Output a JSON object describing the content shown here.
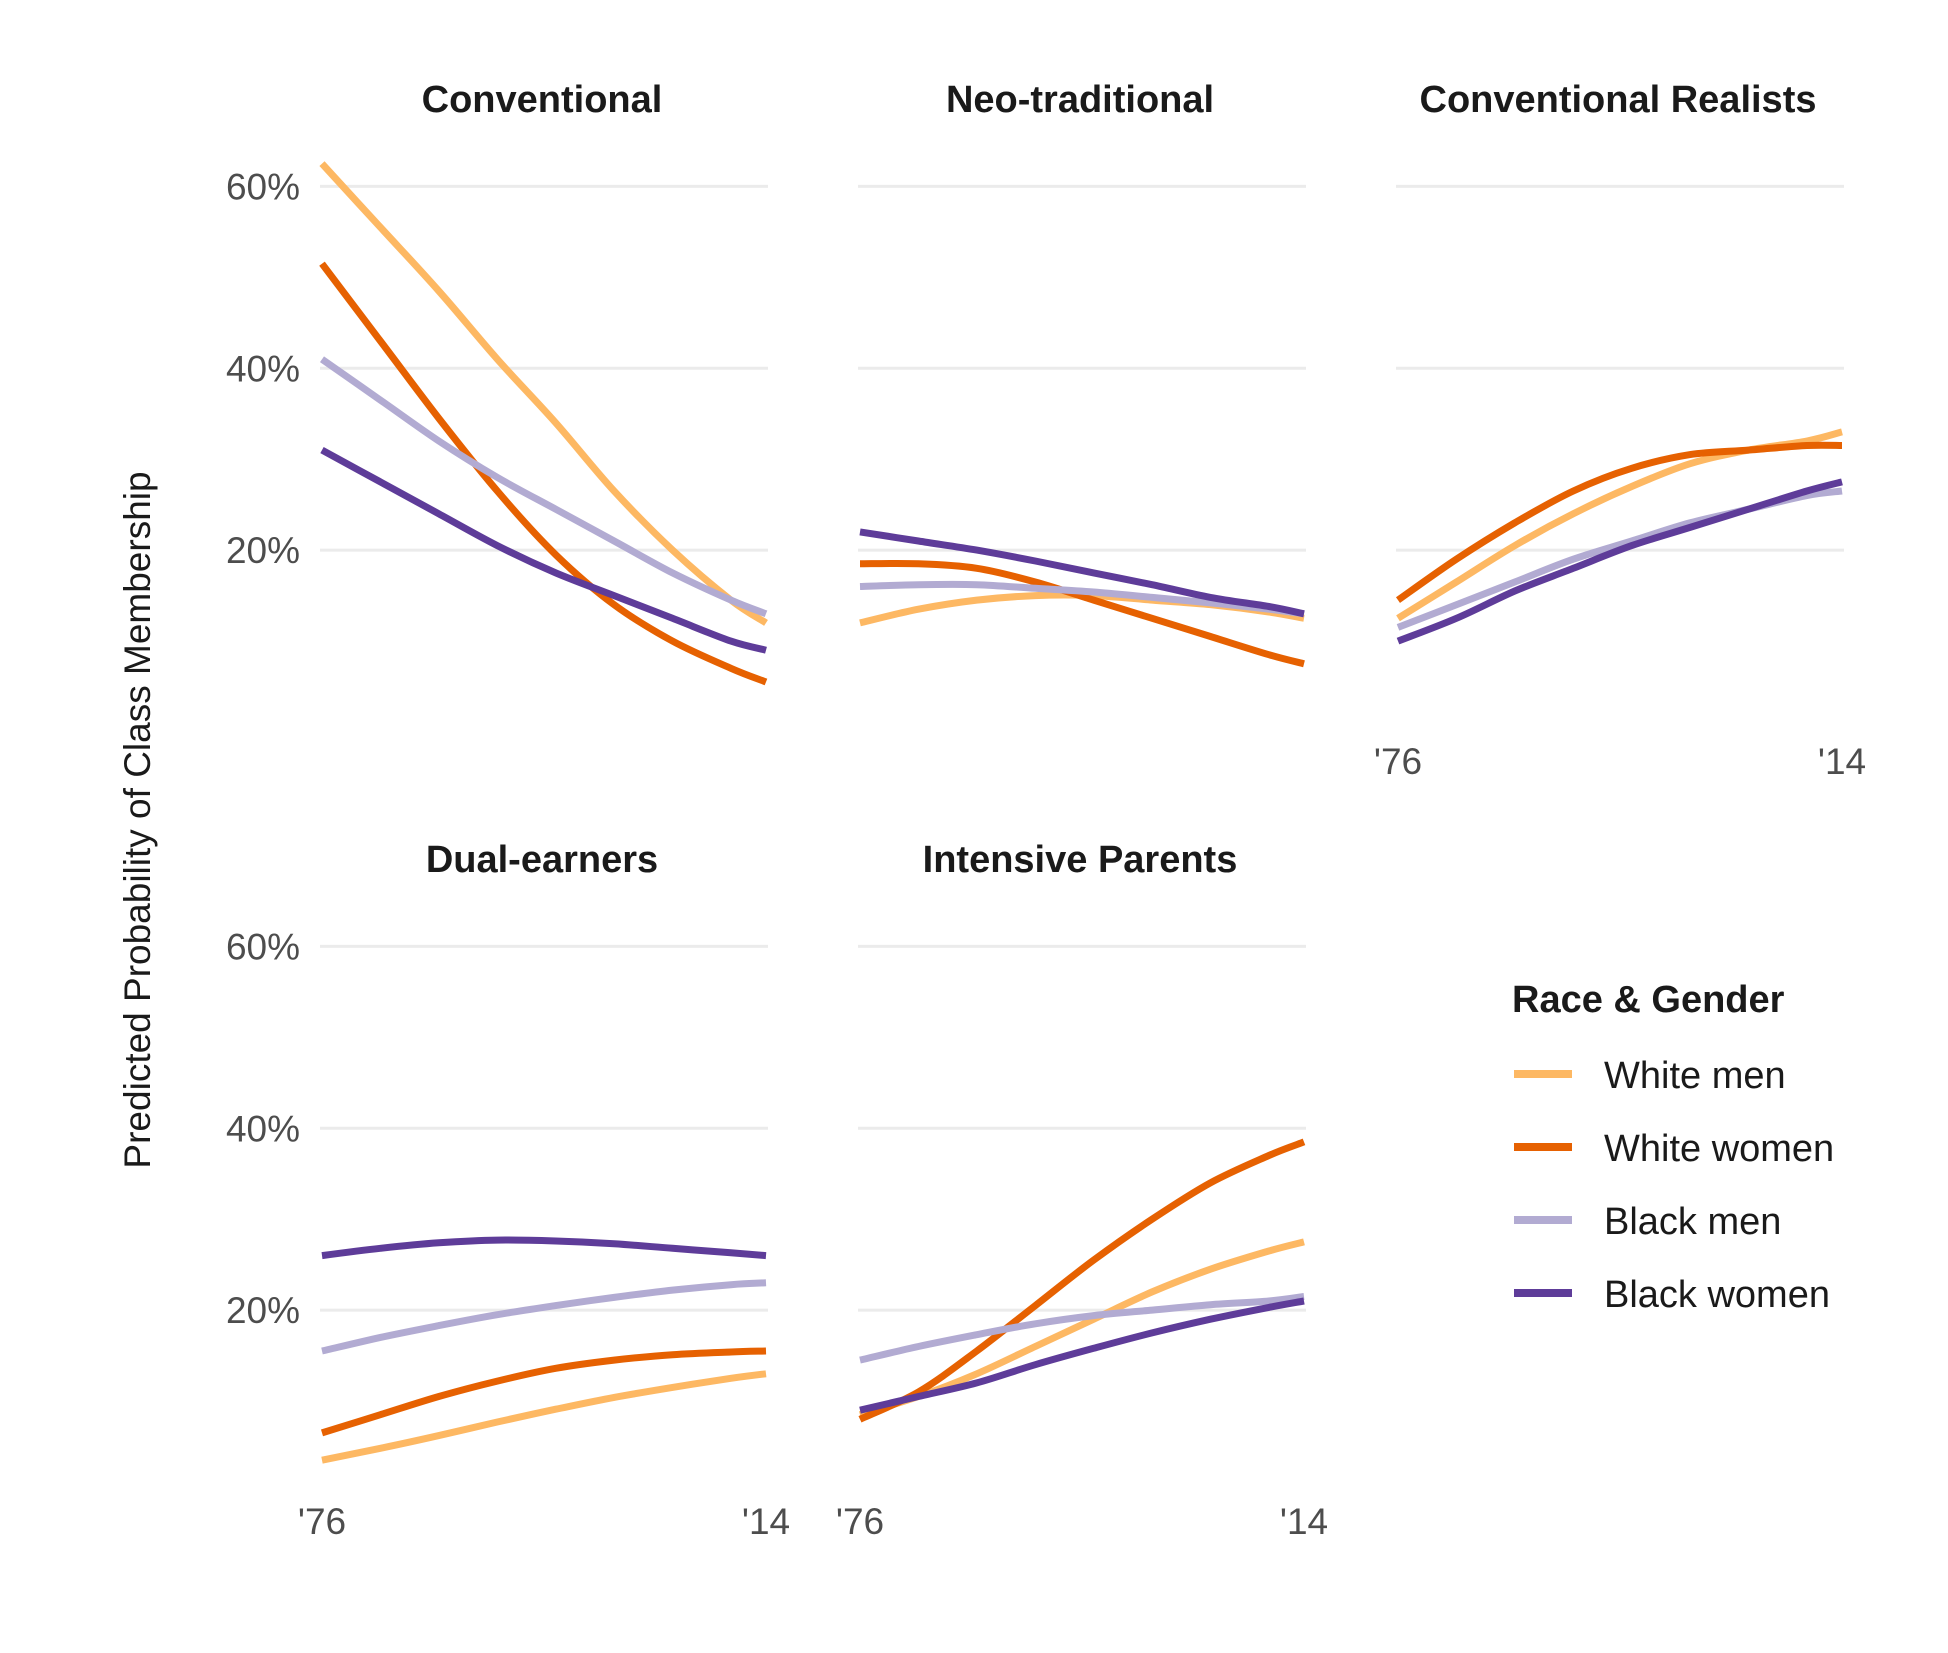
{
  "chart_data": {
    "type": "line",
    "ylabel": "Predicted Probability of Class Membership",
    "x_tick_labels": [
      "'76",
      "'14"
    ],
    "x": [
      1976,
      1981,
      1986,
      1991,
      1996,
      2001,
      2006,
      2011,
      2014
    ],
    "y_ticks": [
      0.2,
      0.4,
      0.6
    ],
    "y_tick_labels": [
      "20%",
      "40%",
      "60%"
    ],
    "ylim": [
      0,
      0.64
    ],
    "grid": "horizontal",
    "legend": {
      "title": "Race & Gender",
      "position": "right",
      "entries": [
        {
          "label": "White men",
          "color": "#fdb863"
        },
        {
          "label": "White women",
          "color": "#e66101"
        },
        {
          "label": "Black men",
          "color": "#b2abd2"
        },
        {
          "label": "Black women",
          "color": "#5e3c99"
        }
      ]
    },
    "panels": [
      {
        "title": "Conventional",
        "series": [
          {
            "name": "White men",
            "values": [
              0.625,
              0.555,
              0.485,
              0.41,
              0.34,
              0.265,
              0.2,
              0.145,
              0.12
            ]
          },
          {
            "name": "White women",
            "values": [
              0.515,
              0.43,
              0.345,
              0.265,
              0.195,
              0.14,
              0.1,
              0.07,
              0.055
            ]
          },
          {
            "name": "Black men",
            "values": [
              0.41,
              0.365,
              0.32,
              0.28,
              0.245,
              0.21,
              0.175,
              0.145,
              0.13
            ]
          },
          {
            "name": "Black women",
            "values": [
              0.31,
              0.275,
              0.24,
              0.205,
              0.175,
              0.15,
              0.125,
              0.1,
              0.09
            ]
          }
        ]
      },
      {
        "title": "Neo-traditional",
        "series": [
          {
            "name": "White men",
            "values": [
              0.12,
              0.135,
              0.145,
              0.15,
              0.15,
              0.145,
              0.14,
              0.132,
              0.125
            ]
          },
          {
            "name": "White women",
            "values": [
              0.185,
              0.185,
              0.18,
              0.165,
              0.145,
              0.125,
              0.105,
              0.085,
              0.075
            ]
          },
          {
            "name": "Black men",
            "values": [
              0.16,
              0.162,
              0.162,
              0.158,
              0.154,
              0.148,
              0.142,
              0.135,
              0.13
            ]
          },
          {
            "name": "Black women",
            "values": [
              0.22,
              0.21,
              0.2,
              0.188,
              0.175,
              0.162,
              0.148,
              0.138,
              0.13
            ]
          }
        ]
      },
      {
        "title": "Conventional Realists",
        "series": [
          {
            "name": "White men",
            "values": [
              0.125,
              0.165,
              0.205,
              0.24,
              0.27,
              0.295,
              0.31,
              0.32,
              0.33
            ]
          },
          {
            "name": "White women",
            "values": [
              0.145,
              0.19,
              0.23,
              0.265,
              0.29,
              0.305,
              0.31,
              0.315,
              0.315
            ]
          },
          {
            "name": "Black men",
            "values": [
              0.115,
              0.14,
              0.165,
              0.19,
              0.21,
              0.23,
              0.245,
              0.26,
              0.265
            ]
          },
          {
            "name": "Black women",
            "values": [
              0.1,
              0.125,
              0.155,
              0.18,
              0.205,
              0.225,
              0.245,
              0.265,
              0.275
            ]
          }
        ]
      },
      {
        "title": "Dual-earners",
        "series": [
          {
            "name": "White men",
            "values": [
              0.035,
              0.048,
              0.062,
              0.077,
              0.091,
              0.104,
              0.115,
              0.125,
              0.13
            ]
          },
          {
            "name": "White women",
            "values": [
              0.065,
              0.085,
              0.105,
              0.122,
              0.136,
              0.145,
              0.151,
              0.154,
              0.155
            ]
          },
          {
            "name": "Black men",
            "values": [
              0.155,
              0.17,
              0.183,
              0.195,
              0.205,
              0.214,
              0.222,
              0.228,
              0.23
            ]
          },
          {
            "name": "Black women",
            "values": [
              0.26,
              0.268,
              0.274,
              0.277,
              0.276,
              0.273,
              0.268,
              0.263,
              0.26
            ]
          }
        ]
      },
      {
        "title": "Intensive Parents",
        "series": [
          {
            "name": "White men",
            "values": [
              0.085,
              0.105,
              0.13,
              0.16,
              0.19,
              0.22,
              0.245,
              0.265,
              0.275
            ]
          },
          {
            "name": "White women",
            "values": [
              0.08,
              0.11,
              0.155,
              0.205,
              0.255,
              0.3,
              0.34,
              0.37,
              0.385
            ]
          },
          {
            "name": "Black men",
            "values": [
              0.145,
              0.16,
              0.173,
              0.185,
              0.194,
              0.2,
              0.206,
              0.21,
              0.215
            ]
          },
          {
            "name": "Black women",
            "values": [
              0.09,
              0.105,
              0.12,
              0.14,
              0.158,
              0.175,
              0.19,
              0.203,
              0.21
            ]
          }
        ]
      }
    ]
  }
}
